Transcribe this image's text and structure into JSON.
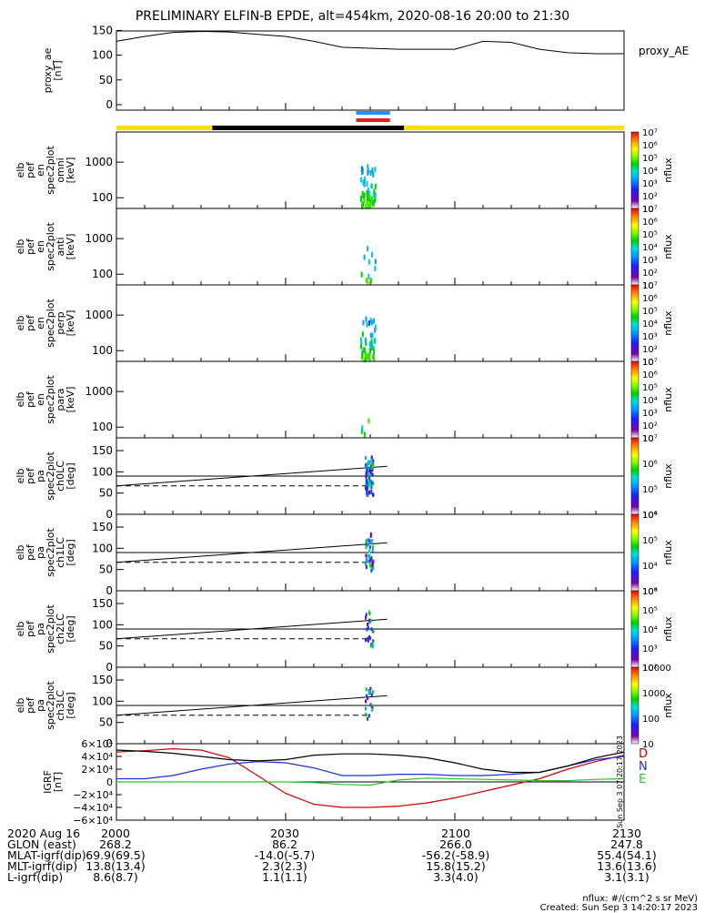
{
  "title": "PRELIMINARY ELFIN-B EPDE, alt=454km, 2020-08-16 20:00 to 21:30",
  "colors": {
    "axis": "#000000",
    "sunlight_bar": "#ffe000",
    "shadow_bar": "#000000",
    "science_zone_blue": "#1e90ff",
    "science_zone_red": "#e02020",
    "igrf_D": "#d00000",
    "igrf_N": "#1f2fdf",
    "igrf_E": "#30c030",
    "igrf_total": "#000000",
    "colorbar": [
      "#ffffff",
      "#7a00a8",
      "#2020ff",
      "#00a0ff",
      "#00e0e0",
      "#00d000",
      "#80ff00",
      "#ffff00",
      "#ff8000",
      "#ff0000"
    ]
  },
  "chart_data": [
    {
      "type": "line",
      "panel": "proxy_AE",
      "ylabel": [
        "proxy_ae",
        "[nT]"
      ],
      "series": [
        {
          "name": "proxy_AE",
          "x": [
            0,
            5,
            10,
            15,
            20,
            25,
            30,
            35,
            40,
            45,
            50,
            55,
            60,
            65,
            70,
            75,
            80,
            85,
            90
          ],
          "values": [
            128,
            138,
            146,
            148,
            147,
            142,
            138,
            128,
            116,
            114,
            112,
            112,
            112,
            128,
            126,
            112,
            105,
            103,
            103
          ]
        }
      ],
      "ylim": [
        0,
        160
      ],
      "yticks": [
        "0",
        "50",
        "100",
        "150"
      ]
    },
    {
      "type": "heatmap",
      "panel": "omni",
      "ylabel": [
        "elb",
        "pef",
        "en",
        "spec2plot",
        "omni",
        "[keV]"
      ],
      "yscale": "log",
      "ylim": [
        50,
        7000
      ],
      "yticks": [
        "100",
        "1000"
      ],
      "colorbar": {
        "label": "nflux",
        "ticks": [
          "10",
          "10²",
          "10³",
          "10⁴",
          "10⁵",
          "10⁶",
          "10⁷"
        ]
      }
    },
    {
      "type": "heatmap",
      "panel": "anti",
      "ylabel": [
        "elb",
        "pef",
        "en",
        "spec2plot",
        "anti",
        "[keV]"
      ],
      "yscale": "log",
      "ylim": [
        50,
        7000
      ],
      "yticks": [
        "100",
        "1000"
      ],
      "colorbar": {
        "label": "nflux",
        "ticks": [
          "10",
          "10²",
          "10³",
          "10⁴",
          "10⁵",
          "10⁶",
          "10⁷"
        ]
      }
    },
    {
      "type": "heatmap",
      "panel": "perp",
      "ylabel": [
        "elb",
        "pef",
        "en",
        "spec2plot",
        "perp",
        "[keV]"
      ],
      "yscale": "log",
      "ylim": [
        50,
        7000
      ],
      "yticks": [
        "100",
        "1000"
      ],
      "colorbar": {
        "label": "nflux",
        "ticks": [
          "10",
          "10²",
          "10³",
          "10⁴",
          "10⁵",
          "10⁶",
          "10⁷"
        ]
      }
    },
    {
      "type": "heatmap",
      "panel": "para",
      "ylabel": [
        "elb",
        "pef",
        "en",
        "spec2plot",
        "para",
        "[keV]"
      ],
      "yscale": "log",
      "ylim": [
        50,
        7000
      ],
      "yticks": [
        "100",
        "1000"
      ],
      "colorbar": {
        "label": "nflux",
        "ticks": [
          "10",
          "10²",
          "10³",
          "10⁴",
          "10⁵",
          "10⁶",
          "10⁷"
        ]
      }
    },
    {
      "type": "heatmap",
      "panel": "ch0LC",
      "ylabel": [
        "elb",
        "pef",
        "pa",
        "spec2plot",
        "ch0LC",
        "[deg]"
      ],
      "ylim": [
        0,
        180
      ],
      "yticks": [
        "0",
        "50",
        "100",
        "150"
      ],
      "colorbar": {
        "label": "nflux",
        "ticks": [
          "10⁴",
          "10⁵",
          "10⁶",
          "10⁷"
        ]
      }
    },
    {
      "type": "heatmap",
      "panel": "ch1LC",
      "ylabel": [
        "elb",
        "pef",
        "pa",
        "spec2plot",
        "ch1LC",
        "[deg]"
      ],
      "ylim": [
        0,
        180
      ],
      "yticks": [
        "0",
        "50",
        "100",
        "150"
      ],
      "colorbar": {
        "label": "nflux",
        "ticks": [
          "10³",
          "10⁴",
          "10⁵",
          "10⁶"
        ]
      }
    },
    {
      "type": "heatmap",
      "panel": "ch2LC",
      "ylabel": [
        "elb",
        "pef",
        "pa",
        "spec2plot",
        "ch2LC",
        "[deg]"
      ],
      "ylim": [
        0,
        180
      ],
      "yticks": [
        "0",
        "50",
        "100",
        "150"
      ],
      "colorbar": {
        "label": "nflux",
        "ticks": [
          "10²",
          "10³",
          "10⁴",
          "10⁵",
          "10⁶"
        ]
      }
    },
    {
      "type": "heatmap",
      "panel": "ch3LC",
      "ylabel": [
        "elb",
        "pef",
        "pa",
        "spec2plot",
        "ch3LC",
        "[deg]"
      ],
      "ylim": [
        0,
        180
      ],
      "yticks": [
        "0",
        "50",
        "100",
        "150"
      ],
      "colorbar": {
        "label": "nflux",
        "ticks": [
          "10",
          "100",
          "1000",
          "10000"
        ]
      }
    },
    {
      "type": "line",
      "panel": "IGRF",
      "ylabel": [
        "IGRF",
        "[nT]"
      ],
      "ylim": [
        -60000,
        60000
      ],
      "yticks": [
        "6×10⁴",
        "4×10⁴",
        "2×10⁴",
        "0",
        "−2×10⁴",
        "−4×10⁴",
        "−6×10⁴"
      ],
      "x": [
        0,
        5,
        10,
        15,
        20,
        25,
        30,
        35,
        40,
        45,
        50,
        55,
        60,
        65,
        70,
        75,
        80,
        85,
        90
      ],
      "series": [
        {
          "name": "D",
          "values": [
            47000,
            49000,
            52000,
            50000,
            38000,
            10000,
            -18000,
            -35000,
            -40000,
            -40000,
            -38000,
            -33000,
            -25000,
            -15000,
            -5000,
            5000,
            20000,
            32000,
            42000
          ]
        },
        {
          "name": "N",
          "values": [
            5000,
            5000,
            10000,
            20000,
            28000,
            32000,
            30000,
            22000,
            10000,
            10000,
            12000,
            12000,
            10000,
            10000,
            12000,
            15000,
            25000,
            35000,
            40000
          ]
        },
        {
          "name": "E",
          "values": [
            0,
            0,
            0,
            0,
            0,
            0,
            0,
            -1000,
            -4000,
            -5000,
            3000,
            6000,
            5000,
            4000,
            3000,
            2000,
            2000,
            4000,
            5000
          ]
        },
        {
          "values": [
            50000,
            48000,
            45000,
            40000,
            35000,
            33000,
            35000,
            42000,
            44000,
            44000,
            42000,
            38000,
            30000,
            20000,
            15000,
            15000,
            25000,
            38000,
            47000
          ]
        }
      ],
      "legend": [
        "D",
        "N",
        "E"
      ]
    }
  ],
  "footer": {
    "rows": [
      {
        "label": "2020 Aug 16",
        "values": [
          "2000",
          "2030",
          "2100",
          "2130"
        ]
      },
      {
        "label": "GLON (east)",
        "values": [
          "268.2",
          "86.2",
          "266.0",
          "247.8"
        ]
      },
      {
        "label": "MLAT-igrf(dip)",
        "values": [
          "69.9(69.5)",
          "-14.0(-5.7)",
          "-56.2(-58.9)",
          "55.4(54.1)"
        ]
      },
      {
        "label": "MLT-igrf(dip)",
        "values": [
          "13.8(13.4)",
          "2.3(2.3)",
          "15.8(15.2)",
          "13.6(13.6)"
        ]
      },
      {
        "label": "L-igrf(dip)",
        "values": [
          "8.6(8.7)",
          "1.1(1.1)",
          "3.3(4.0)",
          "3.1(3.1)"
        ]
      }
    ],
    "note1": "nflux: #/(cm^2 s sr MeV)",
    "note2": "Created: Sun Sep  3 14:20:17 2023",
    "side_stamp": "Sun Sep  3 07:20:17 2023"
  }
}
